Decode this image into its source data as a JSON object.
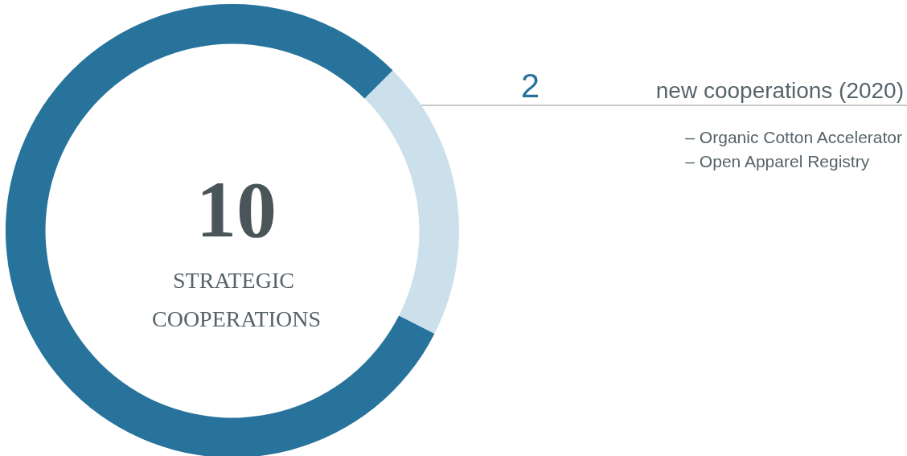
{
  "chart_data": {
    "type": "donut",
    "title": "10",
    "subtitle": "STRATEGIC COOPERATIONS",
    "categories": [
      "new cooperations (2020)",
      null
    ],
    "values": [
      2,
      8
    ],
    "colors": [
      "#cce0ec",
      "#27739b"
    ],
    "value_labels": [
      "2",
      null
    ],
    "legend": false,
    "annotations": [
      "– Organic Cotton Accelerator",
      "– Open Apparel Registry"
    ]
  }
}
